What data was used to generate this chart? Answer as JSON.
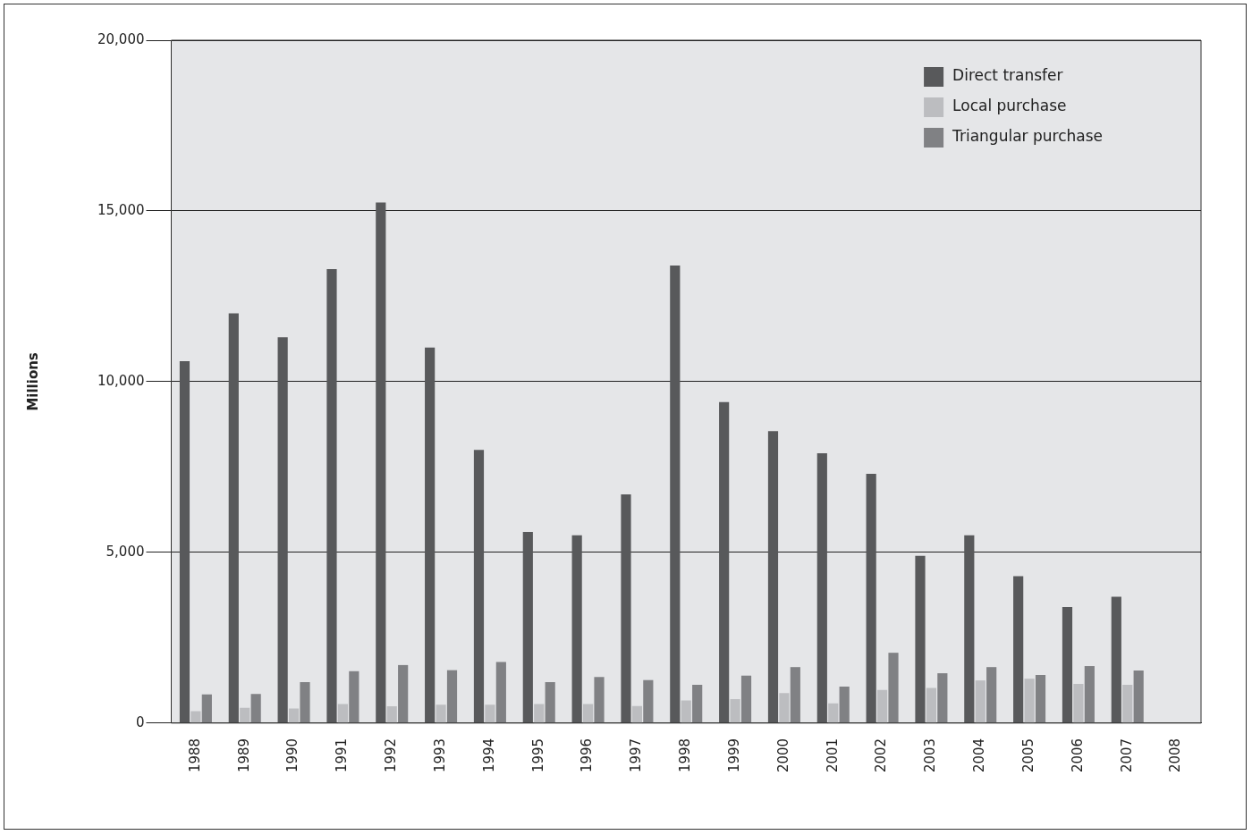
{
  "chart_data": {
    "type": "bar",
    "ylabel": "Millions",
    "categories": [
      "1988",
      "1989",
      "1990",
      "1991",
      "1992",
      "1993",
      "1994",
      "1995",
      "1996",
      "1997",
      "1998",
      "1999",
      "2000",
      "2001",
      "2002",
      "2003",
      "2004",
      "2005",
      "2006",
      "2007",
      "2008"
    ],
    "series": [
      {
        "name": "Direct transfer",
        "color": "#58595b",
        "values": [
          10600,
          12000,
          11300,
          13300,
          15250,
          11000,
          8000,
          5600,
          5500,
          6700,
          13400,
          9400,
          8550,
          7900,
          7300,
          4900,
          5500,
          4300,
          3400,
          3700,
          null
        ]
      },
      {
        "name": "Local purchase",
        "color": "#bcbdc0",
        "values": [
          350,
          450,
          430,
          560,
          490,
          540,
          540,
          560,
          560,
          500,
          660,
          700,
          880,
          580,
          970,
          1030,
          1250,
          1300,
          1150,
          1120,
          null
        ]
      },
      {
        "name": "Triangular purchase",
        "color": "#808184",
        "values": [
          840,
          850,
          1200,
          1520,
          1700,
          1550,
          1790,
          1200,
          1350,
          1260,
          1120,
          1390,
          1640,
          1070,
          2060,
          1460,
          1640,
          1410,
          1670,
          1540,
          null
        ]
      }
    ],
    "ylim": [
      0,
      20000
    ],
    "yticks": [
      {
        "value": 0,
        "label": "0"
      },
      {
        "value": 5000,
        "label": "5,000"
      },
      {
        "value": 10000,
        "label": "10,000"
      },
      {
        "value": 15000,
        "label": "15,000"
      },
      {
        "value": 20000,
        "label": "20,000"
      }
    ],
    "grid": "y",
    "legend": "top right"
  }
}
